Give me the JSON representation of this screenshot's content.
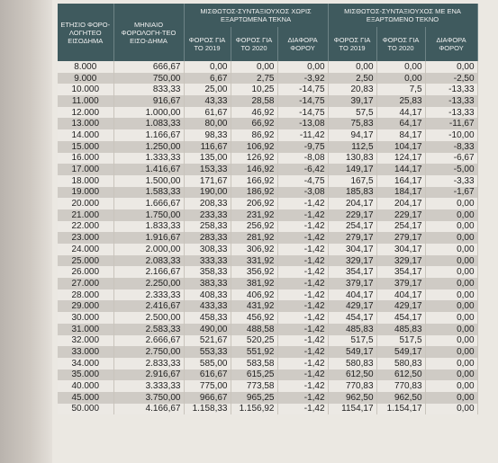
{
  "table": {
    "headers": {
      "col0": "ΕΤΗΣΙΟ ΦΟΡΟ-ΛΟΓΗΤΕΟ ΕΙΣΟΔΗΜΑ",
      "col1": "ΜΗΝΙΑΙΟ ΦΟΡΟΛΟΓΗ-ΤΕΟ ΕΙΣΟ-ΔΗΜΑ",
      "group1": "ΜΙΣΘΩΤΟΣ-ΣΥΝΤΑΞΙΟΥΧΟΣ ΧΩΡΙΣ ΕΞΑΡΤΩΜΕΝΑ ΤΕΚΝΑ",
      "group2": "ΜΙΣΘΩΤΟΣ-ΣΥΝΤΑΞΙΟΥΧΟΣ ΜΕ ΕΝΑ ΕΞΑΡΤΩΜΕΝΟ ΤΕΚΝΟ",
      "sub": [
        "ΦΟΡΟΣ ΓΙΑ ΤΟ 2019",
        "ΦΟΡΟΣ ΓΙΑ ΤΟ 2020",
        "ΔΙΑΦΟΡΑ ΦΟΡΟΥ",
        "ΦΟΡΟΣ ΓΙΑ ΤΟ 2019",
        "ΦΟΡΟΣ ΓΙΑ ΤΟ 2020",
        "ΔΙΑΦΟΡΑ ΦΟΡΟΥ"
      ]
    },
    "rows": [
      [
        "8.000",
        "666,67",
        "0,00",
        "0,00",
        "0,00",
        "0,00",
        "0,00",
        "0,00"
      ],
      [
        "9.000",
        "750,00",
        "6,67",
        "2,75",
        "-3,92",
        "2,50",
        "0,00",
        "-2,50"
      ],
      [
        "10.000",
        "833,33",
        "25,00",
        "10,25",
        "-14,75",
        "20,83",
        "7,5",
        "-13,33"
      ],
      [
        "11.000",
        "916,67",
        "43,33",
        "28,58",
        "-14,75",
        "39,17",
        "25,83",
        "-13,33"
      ],
      [
        "12.000",
        "1.000,00",
        "61,67",
        "46,92",
        "-14,75",
        "57,5",
        "44,17",
        "-13,33"
      ],
      [
        "13.000",
        "1.083,33",
        "80,00",
        "66,92",
        "-13,08",
        "75,83",
        "64,17",
        "-11,67"
      ],
      [
        "14.000",
        "1.166,67",
        "98,33",
        "86,92",
        "-11,42",
        "94,17",
        "84,17",
        "-10,00"
      ],
      [
        "15.000",
        "1.250,00",
        "116,67",
        "106,92",
        "-9,75",
        "112,5",
        "104,17",
        "-8,33"
      ],
      [
        "16.000",
        "1.333,33",
        "135,00",
        "126,92",
        "-8,08",
        "130,83",
        "124,17",
        "-6,67"
      ],
      [
        "17.000",
        "1.416,67",
        "153,33",
        "146,92",
        "-6,42",
        "149,17",
        "144,17",
        "-5,00"
      ],
      [
        "18.000",
        "1.500,00",
        "171,67",
        "166,92",
        "-4,75",
        "167,5",
        "164,17",
        "-3,33"
      ],
      [
        "19.000",
        "1.583,33",
        "190,00",
        "186,92",
        "-3,08",
        "185,83",
        "184,17",
        "-1,67"
      ],
      [
        "20.000",
        "1.666,67",
        "208,33",
        "206,92",
        "-1,42",
        "204,17",
        "204,17",
        "0,00"
      ],
      [
        "21.000",
        "1.750,00",
        "233,33",
        "231,92",
        "-1,42",
        "229,17",
        "229,17",
        "0,00"
      ],
      [
        "22.000",
        "1.833,33",
        "258,33",
        "256,92",
        "-1,42",
        "254,17",
        "254,17",
        "0,00"
      ],
      [
        "23.000",
        "1.916,67",
        "283,33",
        "281,92",
        "-1,42",
        "279,17",
        "279,17",
        "0,00"
      ],
      [
        "24.000",
        "2.000,00",
        "308,33",
        "306,92",
        "-1,42",
        "304,17",
        "304,17",
        "0,00"
      ],
      [
        "25.000",
        "2.083,33",
        "333,33",
        "331,92",
        "-1,42",
        "329,17",
        "329,17",
        "0,00"
      ],
      [
        "26.000",
        "2.166,67",
        "358,33",
        "356,92",
        "-1,42",
        "354,17",
        "354,17",
        "0,00"
      ],
      [
        "27.000",
        "2.250,00",
        "383,33",
        "381,92",
        "-1,42",
        "379,17",
        "379,17",
        "0,00"
      ],
      [
        "28.000",
        "2.333,33",
        "408,33",
        "406,92",
        "-1,42",
        "404,17",
        "404,17",
        "0,00"
      ],
      [
        "29.000",
        "2.416,67",
        "433,33",
        "431,92",
        "-1,42",
        "429,17",
        "429,17",
        "0,00"
      ],
      [
        "30.000",
        "2.500,00",
        "458,33",
        "456,92",
        "-1,42",
        "454,17",
        "454,17",
        "0,00"
      ],
      [
        "31.000",
        "2.583,33",
        "490,00",
        "488,58",
        "-1,42",
        "485,83",
        "485,83",
        "0,00"
      ],
      [
        "32.000",
        "2.666,67",
        "521,67",
        "520,25",
        "-1,42",
        "517,5",
        "517,5",
        "0,00"
      ],
      [
        "33.000",
        "2.750,00",
        "553,33",
        "551,92",
        "-1,42",
        "549,17",
        "549,17",
        "0,00"
      ],
      [
        "34.000",
        "2.833,33",
        "585,00",
        "583,58",
        "-1,42",
        "580,83",
        "580,83",
        "0,00"
      ],
      [
        "35.000",
        "2.916,67",
        "616,67",
        "615,25",
        "-1,42",
        "612,50",
        "612,50",
        "0,00"
      ],
      [
        "40.000",
        "3.333,33",
        "775,00",
        "773,58",
        "-1,42",
        "770,83",
        "770,83",
        "0,00"
      ],
      [
        "45.000",
        "3.750,00",
        "966,67",
        "965,25",
        "-1,42",
        "962,50",
        "962,50",
        "0,00"
      ],
      [
        "50.000",
        "4.166,67",
        "1.158,33",
        "1.156,92",
        "-1,42",
        "1154,17",
        "1.154,17",
        "0,00"
      ]
    ]
  }
}
